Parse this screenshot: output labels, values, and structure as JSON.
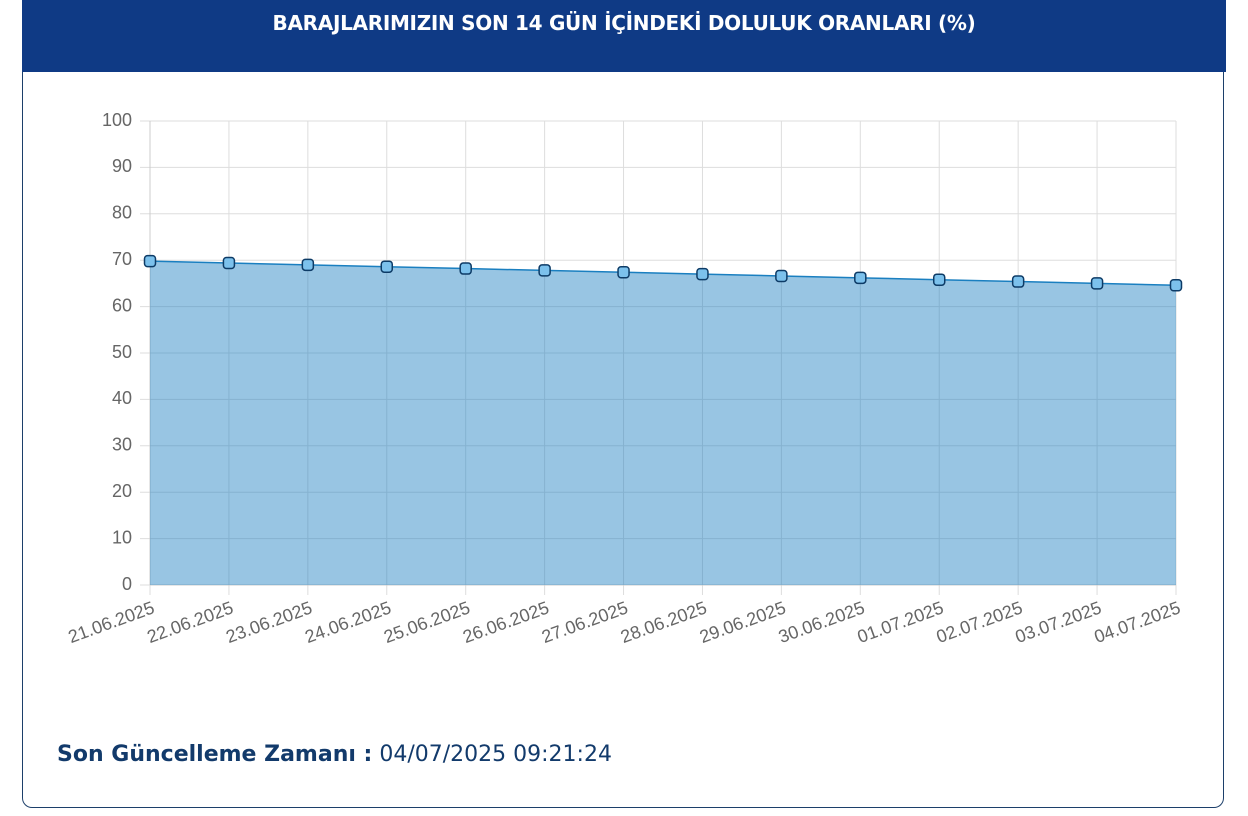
{
  "chart_data": {
    "type": "line",
    "title": "BARAJLARIMIZIN SON 14 GÜN İÇİNDEKİ DOLULUK ORANLARI (%)",
    "categories": [
      "21.06.2025",
      "22.06.2025",
      "23.06.2025",
      "24.06.2025",
      "25.06.2025",
      "26.06.2025",
      "27.06.2025",
      "28.06.2025",
      "29.06.2025",
      "30.06.2025",
      "01.07.2025",
      "02.07.2025",
      "03.07.2025",
      "04.07.2025"
    ],
    "values": [
      69.8,
      69.4,
      69.0,
      68.6,
      68.2,
      67.8,
      67.4,
      67.0,
      66.6,
      66.2,
      65.8,
      65.4,
      65.0,
      64.6
    ],
    "color": "#1a7fc0",
    "fill": true,
    "ylim": [
      0,
      100
    ],
    "yticks": [
      0,
      10,
      20,
      30,
      40,
      50,
      60,
      70,
      80,
      90,
      100
    ],
    "grid": true
  },
  "footer": {
    "label": "Son Güncelleme Zamanı :",
    "value": "04/07/2025 09:21:24"
  }
}
